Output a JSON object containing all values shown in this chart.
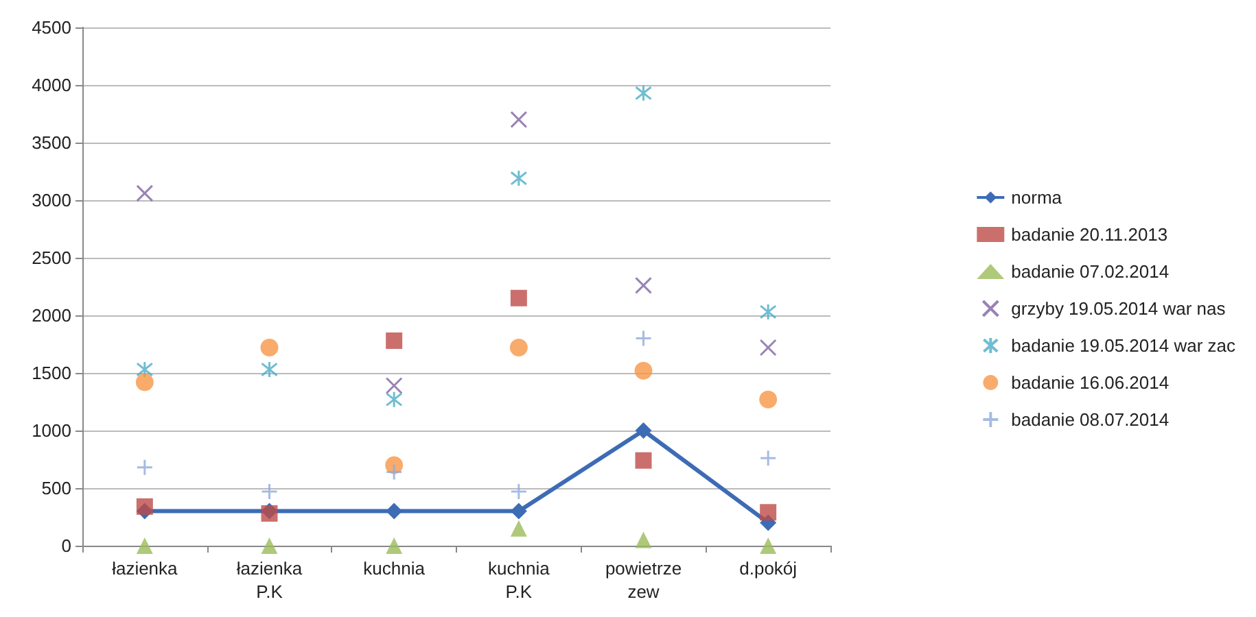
{
  "chart_data": {
    "type": "scatter",
    "categories": [
      "łazienka",
      "łazienka\nP.K",
      "kuchnia",
      "kuchnia\nP.K",
      "powietrze\nzew",
      "d.pokój"
    ],
    "ylim": [
      0,
      4500
    ],
    "yticks": [
      0,
      500,
      1000,
      1500,
      2000,
      2500,
      3000,
      3500,
      4000,
      4500
    ],
    "grid": "y",
    "legend": "right",
    "series": [
      {
        "name": "norma",
        "type": "line",
        "marker": "diamond",
        "line_style": "solid",
        "color": "#3d6cb5",
        "values": [
          300,
          300,
          300,
          300,
          1000,
          200
        ]
      },
      {
        "name": "badanie 20.11.2013",
        "marker": "square",
        "color": "#be4b48",
        "values": [
          340,
          280,
          1780,
          2150,
          740,
          290
        ]
      },
      {
        "name": "badanie 07.02.2014",
        "marker": "triangle",
        "color": "#9bbb59",
        "values": [
          0,
          0,
          0,
          150,
          50,
          0
        ]
      },
      {
        "name": "grzyby 19.05.2014 war nas",
        "marker": "x",
        "color": "#8064a2",
        "values": [
          3060,
          null,
          1390,
          3700,
          2260,
          1720
        ]
      },
      {
        "name": "badanie 19.05.2014 war zac",
        "color": "#4bacc6",
        "values": [
          1530,
          1530,
          1270,
          3190,
          3930,
          2030
        ]
      },
      {
        "name": "badanie 16.06.2014",
        "marker": "circle",
        "color": "#f79646",
        "values": [
          1420,
          1720,
          700,
          1720,
          1520,
          1270
        ]
      },
      {
        "name": "badanie 08.07.2014",
        "marker": "cross",
        "color": "#8eaadb",
        "values": [
          680,
          470,
          640,
          470,
          1800,
          760
        ]
      }
    ]
  }
}
